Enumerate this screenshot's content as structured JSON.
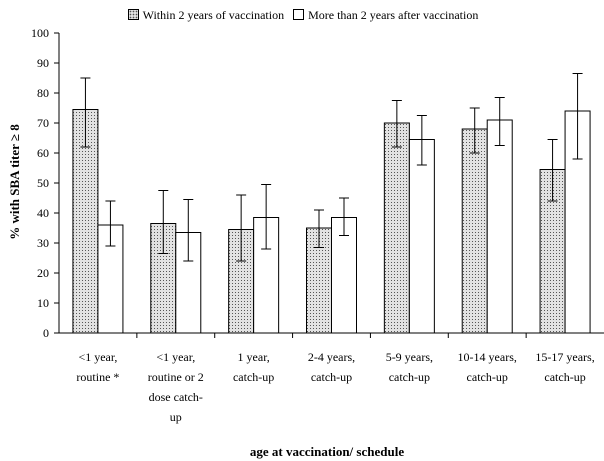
{
  "chart_data": {
    "type": "bar",
    "title": "",
    "xlabel": "age at vaccination/ schedule",
    "ylabel": "% with SBA titer ≥ 8",
    "ylim": [
      0,
      100
    ],
    "yticks": [
      0,
      10,
      20,
      30,
      40,
      50,
      60,
      70,
      80,
      90,
      100
    ],
    "grid": false,
    "legend_position": "top",
    "categories": [
      [
        "<1 year,",
        "routine *"
      ],
      [
        "<1 year,",
        "routine or 2",
        "dose catch-",
        "up"
      ],
      [
        "1 year,",
        "catch-up"
      ],
      [
        "2-4 years,",
        "catch-up"
      ],
      [
        "5-9 years,",
        "catch-up"
      ],
      [
        "10-14 years,",
        "catch-up"
      ],
      [
        "15-17 years,",
        "catch-up"
      ]
    ],
    "series": [
      {
        "name": "Within 2 years of vaccination",
        "fill": "dotted-gray",
        "values": [
          74.5,
          36.5,
          34.5,
          35,
          70,
          68,
          54.5
        ],
        "error_low": [
          62,
          26.5,
          24,
          28.5,
          62,
          60,
          44
        ],
        "error_high": [
          85,
          47.5,
          46,
          41,
          77.5,
          75,
          64.5
        ]
      },
      {
        "name": "More than 2 years after vaccination",
        "fill": "white",
        "values": [
          36,
          33.5,
          38.5,
          38.5,
          64.5,
          71,
          74
        ],
        "error_low": [
          29,
          24,
          28,
          32.5,
          56,
          62.5,
          58
        ],
        "error_high": [
          44,
          44.5,
          49.5,
          45,
          72.5,
          78.5,
          86.5
        ]
      }
    ]
  },
  "colors": {
    "dotted_fill": "#e2e2e2",
    "dot_color": "#555555",
    "outline": "#000000"
  }
}
